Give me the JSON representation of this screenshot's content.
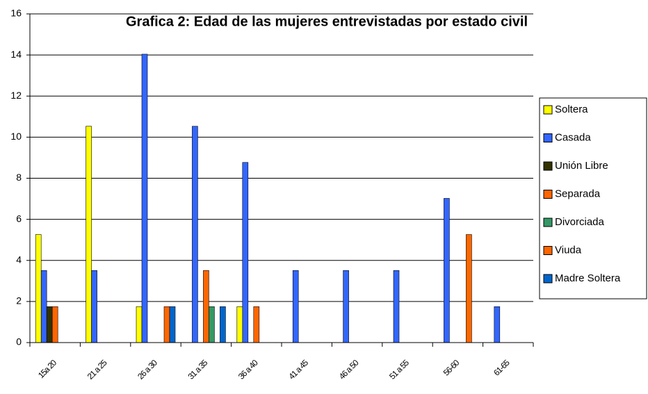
{
  "chart_data": {
    "type": "bar",
    "title": "Grafica 2: Edad de las mujeres entrevistadas por estado civil",
    "categories": [
      "15a 20",
      "21 a 25",
      "26 a 30",
      "31 a 35",
      "36 a 40",
      "41 a 45",
      "46 a 50",
      "51 a 55",
      "56-60",
      "61-65"
    ],
    "series": [
      {
        "name": "Soltera",
        "color": "#ffff00",
        "values": [
          5.26,
          10.53,
          1.75,
          0,
          1.75,
          0,
          0,
          0,
          0,
          0
        ]
      },
      {
        "name": "Casada",
        "color": "#3366ff",
        "values": [
          3.51,
          3.51,
          14.04,
          10.53,
          8.77,
          3.51,
          3.51,
          3.51,
          7.02,
          1.75
        ]
      },
      {
        "name": "Unión Libre",
        "color": "#333300",
        "values": [
          1.75,
          0,
          0,
          0,
          0,
          0,
          0,
          0,
          0,
          0
        ]
      },
      {
        "name": "Separada",
        "color": "#ff6600",
        "values": [
          1.75,
          0,
          0,
          3.51,
          1.75,
          0,
          0,
          0,
          0,
          0
        ]
      },
      {
        "name": "Divorciada",
        "color": "#339966",
        "values": [
          0,
          0,
          0,
          1.75,
          0,
          0,
          0,
          0,
          0,
          0
        ]
      },
      {
        "name": "Viuda",
        "color": "#ff6600",
        "values": [
          0,
          0,
          1.75,
          0,
          0,
          0,
          0,
          0,
          5.26,
          0
        ]
      },
      {
        "name": "Madre Soltera",
        "color": "#0066cc",
        "values": [
          0,
          0,
          1.75,
          1.75,
          0,
          0,
          0,
          0,
          0,
          0
        ]
      }
    ],
    "ylim": [
      0,
      16
    ],
    "yticks": [
      0,
      2,
      4,
      6,
      8,
      10,
      12,
      14,
      16
    ],
    "grid": true,
    "legend": "right"
  }
}
